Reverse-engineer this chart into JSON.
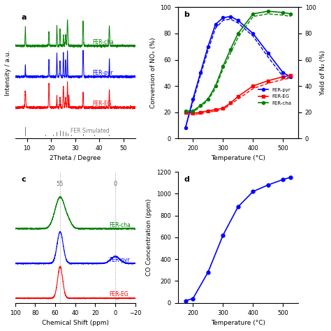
{
  "panel_a": {
    "title": "a",
    "xlabel": "2Theta / Degree",
    "ylabel": "Intensity / a.u.",
    "xlim": [
      5,
      55
    ],
    "offsets": [
      3.5,
      2.3,
      1.1,
      0.0
    ]
  },
  "panel_b": {
    "title": "b",
    "xlabel": "Temperature (°C)",
    "ylabel_left": "Conversion of NOₓ (%)",
    "ylabel_right": "Yield of N₂ (%)",
    "xlim": [
      150,
      550
    ],
    "ylim_left": [
      0,
      100
    ],
    "ylim_right": [
      0,
      100
    ],
    "temp_pyr": [
      175,
      200,
      225,
      250,
      275,
      300,
      325,
      350,
      400,
      450,
      500,
      525
    ],
    "conv_pyr": [
      8,
      30,
      50,
      70,
      87,
      92,
      93,
      90,
      80,
      65,
      50,
      47
    ],
    "temp_eg": [
      175,
      200,
      225,
      250,
      275,
      300,
      325,
      350,
      400,
      450,
      500,
      525
    ],
    "conv_eg": [
      20,
      19,
      20,
      21,
      22,
      23,
      27,
      32,
      40,
      44,
      47,
      48
    ],
    "temp_cha": [
      175,
      200,
      225,
      250,
      275,
      300,
      325,
      350,
      400,
      450,
      500,
      525
    ],
    "conv_cha": [
      21,
      21,
      25,
      30,
      40,
      55,
      68,
      80,
      95,
      97,
      96,
      95
    ],
    "yield_pyr": [
      8,
      28,
      48,
      67,
      84,
      90,
      91,
      88,
      78,
      62,
      47,
      46
    ],
    "yield_eg": [
      19,
      18,
      19,
      20,
      21,
      22,
      26,
      30,
      38,
      42,
      45,
      46
    ],
    "yield_cha": [
      20,
      20,
      24,
      29,
      38,
      53,
      65,
      77,
      93,
      95,
      94,
      93
    ]
  },
  "panel_c": {
    "title": "c",
    "xlabel": "Chemical Shift (ppm)",
    "offsets": [
      2.2,
      1.1,
      0.0
    ],
    "peak55": 55,
    "peak0": 0
  },
  "panel_d": {
    "title": "d",
    "xlabel": "Temperature (°C)",
    "ylabel": "CO Concentration (ppm)",
    "xlim": [
      150,
      550
    ],
    "ylim": [
      0,
      1200
    ],
    "temp": [
      175,
      200,
      250,
      300,
      350,
      400,
      450,
      500,
      525
    ],
    "co": [
      20,
      40,
      280,
      620,
      880,
      1020,
      1080,
      1130,
      1150
    ]
  }
}
